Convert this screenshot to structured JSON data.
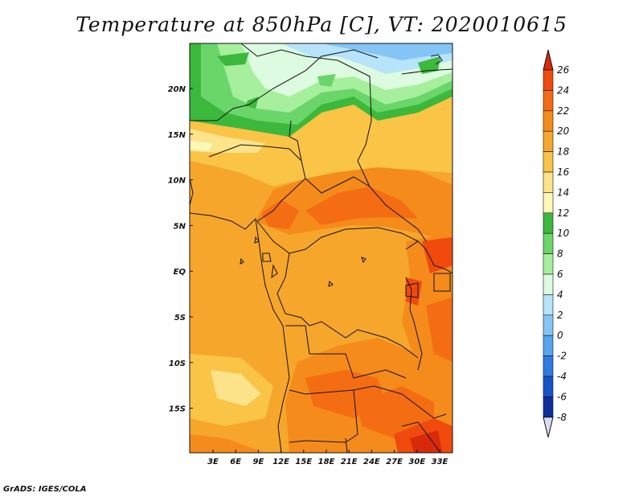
{
  "title": "Temperature at 850hPa [C], VT: 2020010615",
  "footer": "GrADS: IGES/COLA",
  "axes": {
    "lat_labels": [
      "20N",
      "15N",
      "10N",
      "5N",
      "EQ",
      "5S",
      "10S",
      "15S"
    ],
    "lon_labels": [
      "3E",
      "6E",
      "9E",
      "12E",
      "15E",
      "18E",
      "21E",
      "24E",
      "27E",
      "30E",
      "33E"
    ]
  },
  "colorbar": {
    "labels": [
      "26",
      "24",
      "22",
      "20",
      "18",
      "16",
      "14",
      "12",
      "10",
      "8",
      "6",
      "4",
      "2",
      "0",
      "-2",
      "-4",
      "-6",
      "-8"
    ],
    "colors": [
      "#d82a0a",
      "#f04a0c",
      "#f46d12",
      "#f58b1a",
      "#f6a62b",
      "#fac447",
      "#fde38a",
      "#fef8b8",
      "#3cb83c",
      "#6ad66a",
      "#a6ef9c",
      "#dcfbe0",
      "#b7e3fb",
      "#84c5f6",
      "#55a5ef",
      "#2d7be3",
      "#1554c8",
      "#0c2d9c",
      "#0a1564",
      "#dcdcf5"
    ]
  }
}
